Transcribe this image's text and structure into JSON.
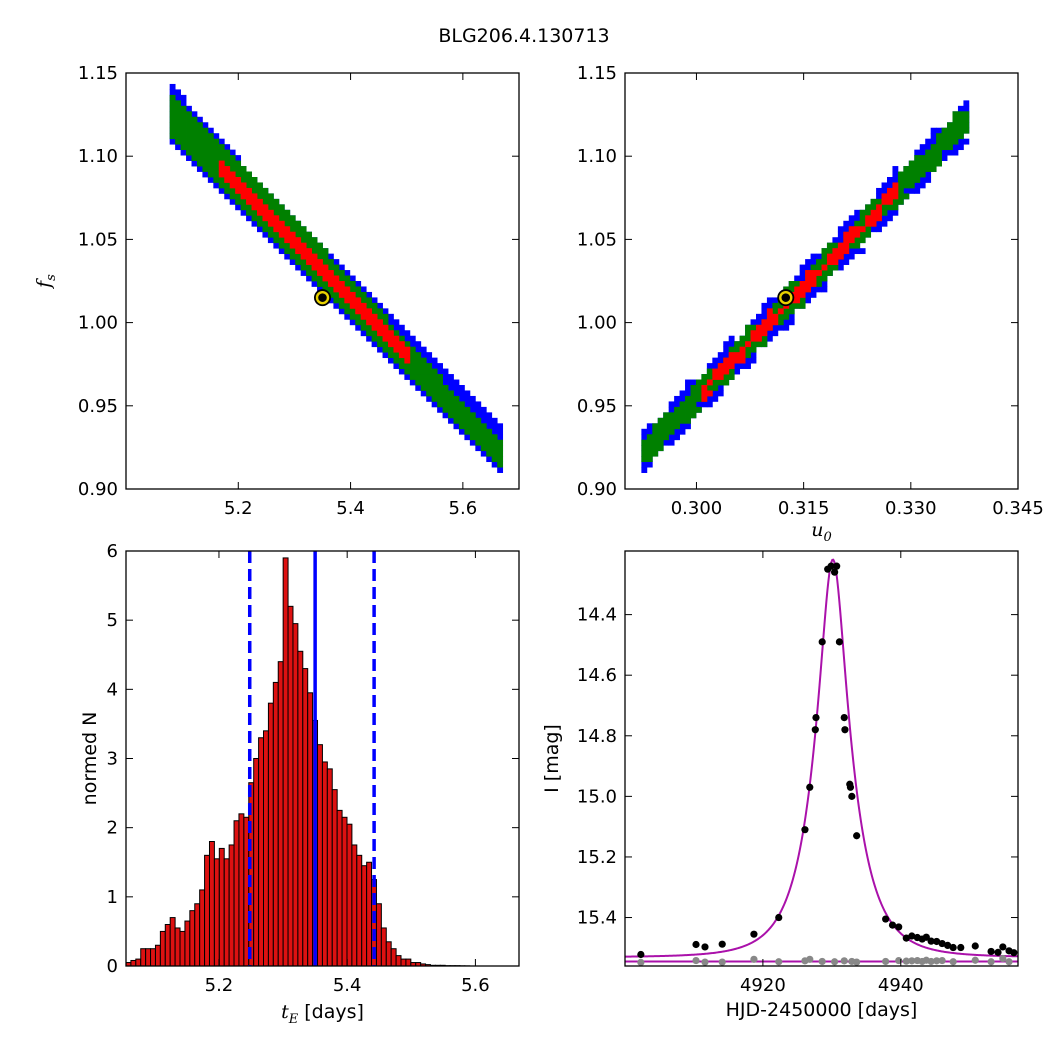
{
  "figure": {
    "title": "BLG206.4.130713"
  },
  "colors": {
    "outer": "#0000ff",
    "middle": "#008000",
    "inner": "#ff0000",
    "marker_face": "#000000",
    "marker_edge": "#e8d200",
    "hist_fill": "#dd1111",
    "model_line": "#aa11aa",
    "data_points": "#000000",
    "residual_points": "#888888"
  },
  "chart_data": [
    {
      "id": "A",
      "type": "heatmap",
      "xlim": [
        5.0,
        5.7
      ],
      "ylim": [
        0.9,
        1.15
      ],
      "xticks": [
        5.2,
        5.4,
        5.6
      ],
      "xtick_labels": [
        "5.2",
        "5.4",
        "5.6"
      ],
      "yticks": [
        0.9,
        0.95,
        1.0,
        1.05,
        1.1,
        1.15
      ],
      "ytick_labels": [
        "0.90",
        "0.95",
        "1.00",
        "1.05",
        "1.10",
        "1.15"
      ],
      "xlabel": "",
      "ylabel": "f_s",
      "ridge": {
        "x_start": 5.08,
        "x_end": 5.67,
        "y_start": 1.125,
        "y_end": 0.922
      },
      "widths": {
        "outer": 0.016,
        "middle": 0.01,
        "inner": 0.006
      },
      "inner_x_range": [
        5.17,
        5.51
      ],
      "best_fit": {
        "x": 5.35,
        "y": 1.015
      }
    },
    {
      "id": "B",
      "type": "heatmap",
      "xlim": [
        0.29,
        0.345
      ],
      "ylim": [
        0.9,
        1.15
      ],
      "xticks": [
        0.3,
        0.315,
        0.33,
        0.345
      ],
      "xtick_labels": [
        "0.300",
        "0.315",
        "0.330",
        "0.345"
      ],
      "yticks": [
        0.9,
        0.95,
        1.0,
        1.05,
        1.1,
        1.15
      ],
      "ytick_labels": [
        "0.90",
        "0.95",
        "1.00",
        "1.05",
        "1.10",
        "1.15"
      ],
      "xlabel": "u_0",
      "ylabel": "",
      "ridge": {
        "x_start": 0.2925,
        "x_end": 0.3385,
        "y_start": 0.922,
        "y_end": 1.125
      },
      "widths": {
        "outer": 0.012,
        "middle": 0.008,
        "inner": 0.004
      },
      "inner_x_range": [
        0.301,
        0.328
      ],
      "best_fit": {
        "x": 0.3125,
        "y": 1.015
      }
    },
    {
      "id": "C",
      "type": "bar",
      "xlim": [
        5.055,
        5.668
      ],
      "ylim": [
        0,
        6
      ],
      "xticks": [
        5.2,
        5.4,
        5.6
      ],
      "xtick_labels": [
        "5.2",
        "5.4",
        "5.6"
      ],
      "yticks": [
        0,
        1,
        2,
        3,
        4,
        5,
        6
      ],
      "ytick_labels": [
        "0",
        "1",
        "2",
        "3",
        "4",
        "5",
        "6"
      ],
      "xlabel": "t_E [days]",
      "ylabel": "normed N",
      "bin_start": 5.055,
      "bin_width": 0.00766,
      "values": [
        0.05,
        0.08,
        0.1,
        0.25,
        0.25,
        0.25,
        0.3,
        0.5,
        0.6,
        0.7,
        0.55,
        0.5,
        0.65,
        0.8,
        0.9,
        1.1,
        1.6,
        1.8,
        1.55,
        1.7,
        1.55,
        1.75,
        2.1,
        2.2,
        2.15,
        2.65,
        3.0,
        3.3,
        3.4,
        3.8,
        4.1,
        4.4,
        5.9,
        5.2,
        4.95,
        4.55,
        4.3,
        3.95,
        3.55,
        3.2,
        2.95,
        2.85,
        2.55,
        2.25,
        2.15,
        2.05,
        1.75,
        1.6,
        1.45,
        1.5,
        1.25,
        0.9,
        0.55,
        0.35,
        0.25,
        0.15,
        0.1,
        0.1,
        0.05,
        0.05,
        0.03,
        0.02,
        0.01,
        0.01,
        0.01,
        0.005,
        0.005,
        0.005,
        0.003,
        0.002
      ],
      "median": 5.35,
      "lower": 5.248,
      "upper": 5.442
    },
    {
      "id": "D",
      "type": "scatter",
      "xlim": [
        4900,
        4957
      ],
      "ylim": [
        15.56,
        14.19
      ],
      "xticks": [
        4920,
        4940
      ],
      "xtick_labels": [
        "4920",
        "4940"
      ],
      "yticks": [
        14.4,
        14.6,
        14.8,
        15.0,
        15.2,
        15.4
      ],
      "ytick_labels": [
        "14.4",
        "14.6",
        "14.8",
        "15.0",
        "15.2",
        "15.4"
      ],
      "xlabel": "HJD-2450000 [days]",
      "ylabel": "I [mag]",
      "model": {
        "t0": 4930.15,
        "tE": 5.35,
        "u0": 0.3125,
        "baseline": 15.531,
        "fs": 1.015
      },
      "residual_level": 15.545,
      "points": [
        [
          4902.3,
          15.522
        ],
        [
          4910.3,
          15.489
        ],
        [
          4911.6,
          15.497
        ],
        [
          4914.1,
          15.488
        ],
        [
          4918.7,
          15.455
        ],
        [
          4922.3,
          15.4
        ],
        [
          4926.1,
          15.11
        ],
        [
          4926.8,
          14.97
        ],
        [
          4927.6,
          14.78
        ],
        [
          4927.7,
          14.74
        ],
        [
          4928.6,
          14.49
        ],
        [
          4929.4,
          14.25
        ],
        [
          4929.9,
          14.24
        ],
        [
          4930.4,
          14.26
        ],
        [
          4930.7,
          14.24
        ],
        [
          4931.1,
          14.49
        ],
        [
          4931.8,
          14.74
        ],
        [
          4931.9,
          14.78
        ],
        [
          4932.6,
          14.96
        ],
        [
          4932.7,
          14.97
        ],
        [
          4932.9,
          15.0
        ],
        [
          4933.6,
          15.13
        ],
        [
          4937.8,
          15.405
        ],
        [
          4938.8,
          15.425
        ],
        [
          4939.7,
          15.431
        ],
        [
          4940.8,
          15.468
        ],
        [
          4941.6,
          15.461
        ],
        [
          4942.4,
          15.466
        ],
        [
          4943.1,
          15.471
        ],
        [
          4943.7,
          15.465
        ],
        [
          4944.4,
          15.478
        ],
        [
          4945.2,
          15.479
        ],
        [
          4946.0,
          15.486
        ],
        [
          4946.8,
          15.492
        ],
        [
          4947.6,
          15.499
        ],
        [
          4948.7,
          15.499
        ],
        [
          4950.8,
          15.494
        ],
        [
          4953.1,
          15.512
        ],
        [
          4954.1,
          15.515
        ],
        [
          4954.8,
          15.497
        ],
        [
          4955.7,
          15.51
        ],
        [
          4956.4,
          15.516
        ]
      ],
      "residual_points": [
        [
          4902.3,
          15.548
        ],
        [
          4910.3,
          15.542
        ],
        [
          4911.6,
          15.547
        ],
        [
          4914.1,
          15.547
        ],
        [
          4918.7,
          15.538
        ],
        [
          4922.3,
          15.546
        ],
        [
          4926.1,
          15.543
        ],
        [
          4926.8,
          15.538
        ],
        [
          4928.6,
          15.545
        ],
        [
          4930.4,
          15.546
        ],
        [
          4931.8,
          15.543
        ],
        [
          4932.9,
          15.545
        ],
        [
          4933.6,
          15.547
        ],
        [
          4937.8,
          15.545
        ],
        [
          4939.7,
          15.542
        ],
        [
          4940.8,
          15.544
        ],
        [
          4941.6,
          15.543
        ],
        [
          4942.4,
          15.542
        ],
        [
          4943.1,
          15.545
        ],
        [
          4943.7,
          15.541
        ],
        [
          4944.4,
          15.545
        ],
        [
          4945.2,
          15.543
        ],
        [
          4946.0,
          15.542
        ],
        [
          4947.6,
          15.546
        ],
        [
          4950.8,
          15.541
        ],
        [
          4953.1,
          15.546
        ],
        [
          4954.8,
          15.535
        ],
        [
          4955.7,
          15.546
        ]
      ]
    }
  ]
}
